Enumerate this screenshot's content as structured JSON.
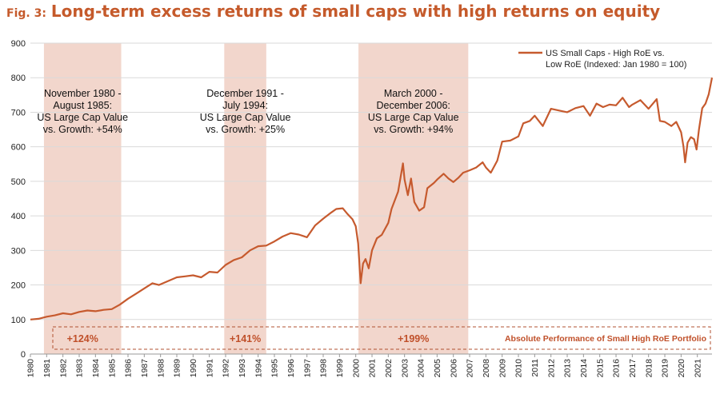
{
  "title": {
    "fig": "Fig. 3:",
    "text": "Long-term excess returns of small caps with high returns on equity"
  },
  "colors": {
    "accent": "#C55A2B",
    "line": "#C65A2E",
    "shade": "#F2D6CC",
    "box": "#B05030"
  },
  "chart_data": {
    "type": "line",
    "xlim": [
      1980,
      2021.9
    ],
    "ylim": [
      0,
      900
    ],
    "yticks": [
      0,
      100,
      200,
      300,
      400,
      500,
      600,
      700,
      800,
      900
    ],
    "xticks": [
      "1980",
      "1981",
      "1982",
      "1983",
      "1984",
      "1985",
      "1986",
      "1987",
      "1988",
      "1989",
      "1990",
      "1991",
      "1992",
      "1993",
      "1994",
      "1995",
      "1996",
      "1997",
      "1998",
      "1999",
      "2000",
      "2001",
      "2002",
      "2003",
      "2004",
      "2005",
      "2006",
      "2007",
      "2008",
      "2009",
      "2010",
      "2011",
      "2012",
      "2013",
      "2014",
      "2015",
      "2016",
      "2017",
      "2018",
      "2019",
      "2020",
      "2021"
    ],
    "grid": true,
    "legend": {
      "position": "top-right",
      "label": "US Small Caps - High RoE vs. Low RoE (Indexed: Jan 1980 = 100)"
    },
    "series": [
      {
        "name": "US Small Caps - High RoE vs. Low RoE (Indexed: Jan 1980 = 100)",
        "points": [
          [
            1980.0,
            100
          ],
          [
            1980.5,
            102
          ],
          [
            1981.0,
            108
          ],
          [
            1981.5,
            112
          ],
          [
            1982.0,
            118
          ],
          [
            1982.5,
            115
          ],
          [
            1983.0,
            122
          ],
          [
            1983.5,
            126
          ],
          [
            1984.0,
            124
          ],
          [
            1984.5,
            128
          ],
          [
            1985.0,
            130
          ],
          [
            1985.5,
            143
          ],
          [
            1986.0,
            160
          ],
          [
            1986.5,
            175
          ],
          [
            1987.0,
            190
          ],
          [
            1987.5,
            205
          ],
          [
            1987.9,
            200
          ],
          [
            1988.5,
            212
          ],
          [
            1989.0,
            222
          ],
          [
            1989.5,
            225
          ],
          [
            1990.0,
            228
          ],
          [
            1990.5,
            222
          ],
          [
            1991.0,
            238
          ],
          [
            1991.5,
            236
          ],
          [
            1992.0,
            258
          ],
          [
            1992.5,
            272
          ],
          [
            1993.0,
            280
          ],
          [
            1993.5,
            300
          ],
          [
            1994.0,
            312
          ],
          [
            1994.5,
            314
          ],
          [
            1995.0,
            326
          ],
          [
            1995.5,
            340
          ],
          [
            1996.0,
            350
          ],
          [
            1996.5,
            346
          ],
          [
            1997.0,
            338
          ],
          [
            1997.5,
            372
          ],
          [
            1998.0,
            392
          ],
          [
            1998.5,
            410
          ],
          [
            1998.8,
            420
          ],
          [
            1999.2,
            422
          ],
          [
            1999.5,
            405
          ],
          [
            1999.8,
            390
          ],
          [
            2000.0,
            370
          ],
          [
            2000.15,
            320
          ],
          [
            2000.3,
            205
          ],
          [
            2000.45,
            262
          ],
          [
            2000.6,
            275
          ],
          [
            2000.8,
            248
          ],
          [
            2001.0,
            300
          ],
          [
            2001.3,
            335
          ],
          [
            2001.6,
            345
          ],
          [
            2002.0,
            380
          ],
          [
            2002.2,
            420
          ],
          [
            2002.6,
            470
          ],
          [
            2002.9,
            552
          ],
          [
            2003.0,
            505
          ],
          [
            2003.2,
            460
          ],
          [
            2003.4,
            508
          ],
          [
            2003.6,
            440
          ],
          [
            2003.9,
            415
          ],
          [
            2004.2,
            425
          ],
          [
            2004.4,
            480
          ],
          [
            2004.8,
            495
          ],
          [
            2005.0,
            505
          ],
          [
            2005.4,
            522
          ],
          [
            2005.7,
            508
          ],
          [
            2006.0,
            498
          ],
          [
            2006.3,
            510
          ],
          [
            2006.6,
            525
          ],
          [
            2007.0,
            532
          ],
          [
            2007.4,
            540
          ],
          [
            2007.8,
            555
          ],
          [
            2008.0,
            540
          ],
          [
            2008.3,
            525
          ],
          [
            2008.7,
            560
          ],
          [
            2009.0,
            615
          ],
          [
            2009.5,
            618
          ],
          [
            2010.0,
            630
          ],
          [
            2010.3,
            668
          ],
          [
            2010.7,
            675
          ],
          [
            2011.0,
            690
          ],
          [
            2011.5,
            660
          ],
          [
            2012.0,
            710
          ],
          [
            2012.5,
            705
          ],
          [
            2013.0,
            700
          ],
          [
            2013.5,
            712
          ],
          [
            2014.0,
            718
          ],
          [
            2014.4,
            690
          ],
          [
            2014.8,
            725
          ],
          [
            2015.2,
            715
          ],
          [
            2015.6,
            722
          ],
          [
            2016.0,
            720
          ],
          [
            2016.4,
            742
          ],
          [
            2016.8,
            715
          ],
          [
            2017.0,
            722
          ],
          [
            2017.5,
            735
          ],
          [
            2018.0,
            710
          ],
          [
            2018.5,
            738
          ],
          [
            2018.7,
            675
          ],
          [
            2019.0,
            672
          ],
          [
            2019.4,
            660
          ],
          [
            2019.7,
            672
          ],
          [
            2020.0,
            642
          ],
          [
            2020.15,
            600
          ],
          [
            2020.25,
            555
          ],
          [
            2020.4,
            612
          ],
          [
            2020.6,
            628
          ],
          [
            2020.8,
            622
          ],
          [
            2020.95,
            592
          ],
          [
            2021.1,
            650
          ],
          [
            2021.3,
            712
          ],
          [
            2021.5,
            725
          ],
          [
            2021.7,
            752
          ],
          [
            2021.9,
            800
          ]
        ]
      }
    ],
    "shaded_periods": [
      {
        "start": 1980.833,
        "end": 1985.583,
        "label_lines": [
          "November 1980 -",
          "August 1985:",
          "US Large Cap Value",
          "vs. Growth: +54%"
        ],
        "performance": "+124%"
      },
      {
        "start": 1991.917,
        "end": 1994.5,
        "label_lines": [
          "December 1991 -",
          "July 1994:",
          "US Large Cap Value",
          "vs. Growth: +25%"
        ],
        "performance": "+141%"
      },
      {
        "start": 2000.167,
        "end": 2006.917,
        "label_lines": [
          "March 2000 -",
          "December 2006:",
          "US Large Cap Value",
          "vs. Growth: +94%"
        ],
        "performance": "+199%"
      }
    ],
    "box_label": "Absolute Performance of Small High RoE Portfolio"
  }
}
